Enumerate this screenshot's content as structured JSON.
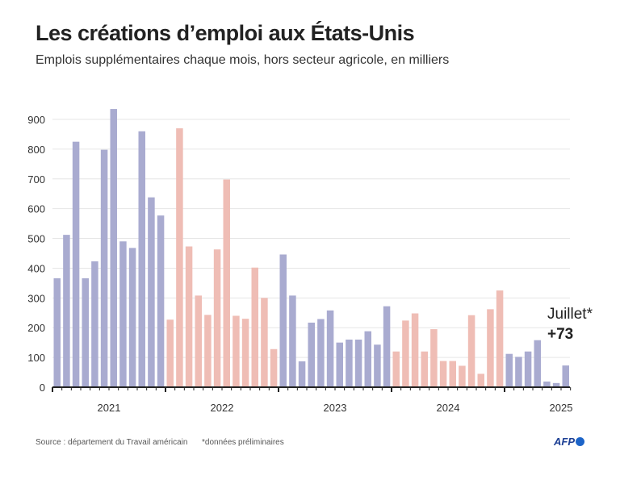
{
  "title": "Les créations d’emploi aux États-Unis",
  "subtitle": "Emplois supplémentaires chaque mois, hors secteur agricole, en milliers",
  "source": "Source : département du Travail américain",
  "note": "*données préliminaires",
  "logo": "AFP",
  "chart_data": {
    "type": "bar",
    "title": "Les créations d’emploi aux États-Unis",
    "ylim": [
      0,
      900
    ],
    "yticks": [
      0,
      100,
      200,
      300,
      400,
      500,
      600,
      700,
      800,
      900
    ],
    "grid": true,
    "colors": {
      "blue": "#a9abd0",
      "pink": "#efbdb5"
    },
    "years": [
      {
        "label": "2021",
        "color": "blue",
        "values": [
          366,
          512,
          825,
          366,
          423,
          798,
          935,
          490,
          468,
          860,
          638,
          577
        ]
      },
      {
        "label": "2022",
        "color": "pink",
        "values": [
          227,
          870,
          473,
          308,
          243,
          463,
          698,
          240,
          230,
          402,
          300,
          128
        ]
      },
      {
        "label": "2023",
        "color": "blue",
        "values": [
          446,
          308,
          87,
          217,
          229,
          258,
          150,
          160,
          160,
          188,
          143,
          272
        ]
      },
      {
        "label": "2024",
        "color": "pink",
        "values": [
          120,
          224,
          248,
          120,
          195,
          88,
          88,
          72,
          242,
          45,
          262,
          325
        ]
      },
      {
        "label": "2025",
        "color": "blue",
        "values": [
          112,
          102,
          120,
          158,
          19,
          14,
          73
        ]
      }
    ],
    "annotation": {
      "label": "Juillet*",
      "value": "+73"
    }
  }
}
